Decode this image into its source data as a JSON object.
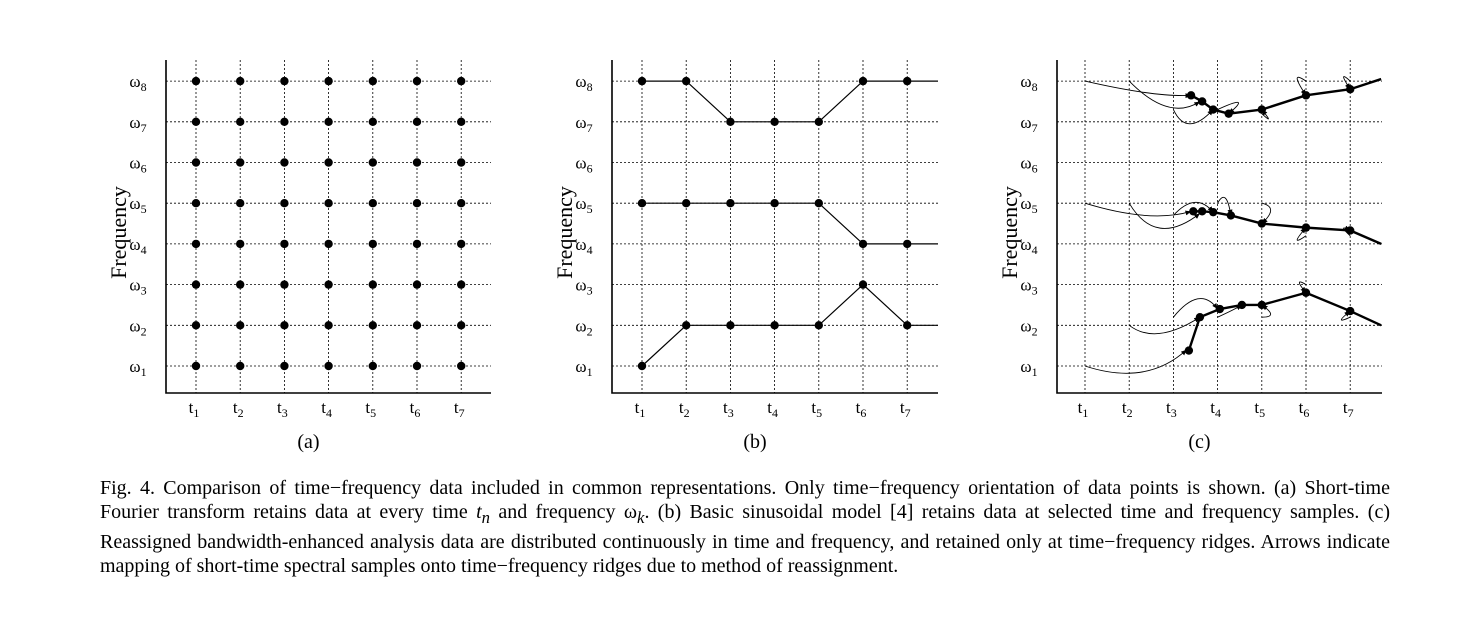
{
  "figure": {
    "ylabel": "Frequency",
    "freq_labels": [
      "ω1",
      "ω2",
      "ω3",
      "ω4",
      "ω5",
      "ω6",
      "ω7",
      "ω8"
    ],
    "time_labels": [
      "t1",
      "t2",
      "t3",
      "t4",
      "t5",
      "t6",
      "t7"
    ],
    "panels": [
      {
        "label": "(a)"
      },
      {
        "label": "(b)"
      },
      {
        "label": "(c)"
      }
    ]
  },
  "chart_data": [
    {
      "type": "scatter",
      "panel": "(a)",
      "ylabel": "Frequency",
      "x_ticks": [
        "t1",
        "t2",
        "t3",
        "t4",
        "t5",
        "t6",
        "t7"
      ],
      "y_ticks": [
        "ω1",
        "ω2",
        "ω3",
        "ω4",
        "ω5",
        "ω6",
        "ω7",
        "ω8"
      ],
      "points": [
        [
          1,
          1
        ],
        [
          1,
          2
        ],
        [
          1,
          3
        ],
        [
          1,
          4
        ],
        [
          1,
          5
        ],
        [
          1,
          6
        ],
        [
          1,
          7
        ],
        [
          1,
          8
        ],
        [
          2,
          1
        ],
        [
          2,
          2
        ],
        [
          2,
          3
        ],
        [
          2,
          4
        ],
        [
          2,
          5
        ],
        [
          2,
          6
        ],
        [
          2,
          7
        ],
        [
          2,
          8
        ],
        [
          3,
          1
        ],
        [
          3,
          2
        ],
        [
          3,
          3
        ],
        [
          3,
          4
        ],
        [
          3,
          5
        ],
        [
          3,
          6
        ],
        [
          3,
          7
        ],
        [
          3,
          8
        ],
        [
          4,
          1
        ],
        [
          4,
          2
        ],
        [
          4,
          3
        ],
        [
          4,
          4
        ],
        [
          4,
          5
        ],
        [
          4,
          6
        ],
        [
          4,
          7
        ],
        [
          4,
          8
        ],
        [
          5,
          1
        ],
        [
          5,
          2
        ],
        [
          5,
          3
        ],
        [
          5,
          4
        ],
        [
          5,
          5
        ],
        [
          5,
          6
        ],
        [
          5,
          7
        ],
        [
          5,
          8
        ],
        [
          6,
          1
        ],
        [
          6,
          2
        ],
        [
          6,
          3
        ],
        [
          6,
          4
        ],
        [
          6,
          5
        ],
        [
          6,
          6
        ],
        [
          6,
          7
        ],
        [
          6,
          8
        ],
        [
          7,
          1
        ],
        [
          7,
          2
        ],
        [
          7,
          3
        ],
        [
          7,
          4
        ],
        [
          7,
          5
        ],
        [
          7,
          6
        ],
        [
          7,
          7
        ],
        [
          7,
          8
        ]
      ],
      "grid": true
    },
    {
      "type": "line",
      "panel": "(b)",
      "ylabel": "Frequency",
      "x_ticks": [
        "t1",
        "t2",
        "t3",
        "t4",
        "t5",
        "t6",
        "t7"
      ],
      "y_ticks": [
        "ω1",
        "ω2",
        "ω3",
        "ω4",
        "ω5",
        "ω6",
        "ω7",
        "ω8"
      ],
      "series": [
        {
          "x": [
            1,
            2,
            3,
            4,
            5,
            6,
            7
          ],
          "y": [
            8,
            8,
            7,
            7,
            7,
            8,
            8
          ],
          "extend": [
            false,
            true
          ]
        },
        {
          "x": [
            1,
            2,
            3,
            4,
            5,
            6,
            7
          ],
          "y": [
            5,
            5,
            5,
            5,
            5,
            4,
            4
          ],
          "extend": [
            false,
            true
          ]
        },
        {
          "x": [
            1,
            2,
            3,
            4,
            5,
            6,
            7
          ],
          "y": [
            1,
            2,
            2,
            2,
            2,
            3,
            2
          ],
          "extend": [
            false,
            true
          ]
        }
      ],
      "grid": true
    },
    {
      "type": "line",
      "panel": "(c)",
      "ylabel": "Frequency",
      "x_ticks": [
        "t1",
        "t2",
        "t3",
        "t4",
        "t5",
        "t6",
        "t7"
      ],
      "y_ticks": [
        "ω1",
        "ω2",
        "ω3",
        "ω4",
        "ω5",
        "ω6",
        "ω7",
        "ω8"
      ],
      "series": [
        {
          "x": [
            3.4,
            3.65,
            3.9,
            4.25,
            5,
            6,
            7,
            7.7
          ],
          "y": [
            7.65,
            7.5,
            7.3,
            7.2,
            7.3,
            7.65,
            7.8,
            8.05
          ],
          "markers": [
            true,
            true,
            true,
            true,
            true,
            true,
            true,
            false
          ]
        },
        {
          "x": [
            3.45,
            3.65,
            3.9,
            4.3,
            5,
            6,
            7,
            7.7
          ],
          "y": [
            4.8,
            4.8,
            4.78,
            4.7,
            4.5,
            4.4,
            4.33,
            4.0
          ],
          "markers": [
            true,
            true,
            true,
            true,
            true,
            true,
            true,
            false
          ]
        },
        {
          "x": [
            3.35,
            3.6,
            4.05,
            4.55,
            5,
            6,
            7,
            7.7
          ],
          "y": [
            1.38,
            2.2,
            2.4,
            2.5,
            2.5,
            2.8,
            2.35,
            2.0
          ],
          "markers": [
            true,
            true,
            true,
            true,
            true,
            true,
            true,
            false
          ]
        }
      ],
      "arrows": true,
      "grid": true
    }
  ],
  "caption": {
    "line1": "Fig. 4. Comparison of time−frequency data included in common representations. Only time−frequency orientation of data points is shown. (a) Short-time Fourier transform retains data at every time ",
    "tn": "t",
    "tn_sub": "n",
    "mid": " and frequency ω",
    "wk_sub": "k",
    "line2": ". (b) Basic sinusoidal model [4] retains data at selected time and frequency samples. (c) Reassigned bandwidth-enhanced analysis data are distributed continuously in time and frequency, and retained only at time−frequency ridges. Arrows indicate mapping of short-time spectral samples onto time−frequency ridges due to method of reassignment."
  }
}
